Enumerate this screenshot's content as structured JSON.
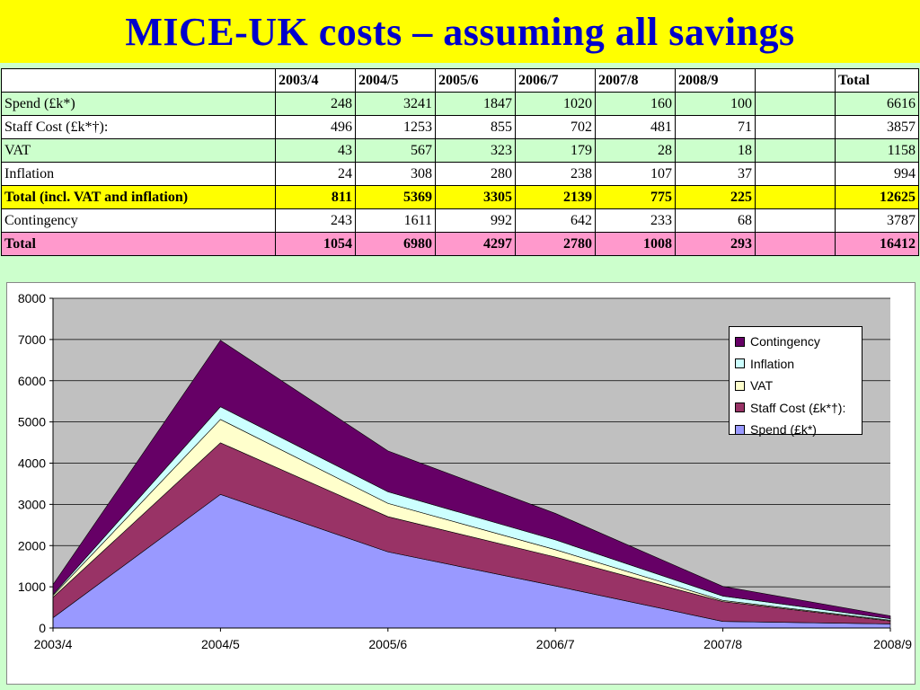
{
  "title": "MICE-UK costs – assuming all savings",
  "table": {
    "columns": [
      "",
      "2003/4",
      "2004/5",
      "2005/6",
      "2006/7",
      "2007/8",
      "2008/9",
      "",
      "Total"
    ],
    "rows": [
      {
        "label": "Spend (£k*)",
        "values": [
          "248",
          "3241",
          "1847",
          "1020",
          "160",
          "100",
          "",
          "6616"
        ],
        "style": "green"
      },
      {
        "label": "Staff Cost (£k*†):",
        "values": [
          "496",
          "1253",
          "855",
          "702",
          "481",
          "71",
          "",
          "3857"
        ],
        "style": "white"
      },
      {
        "label": "VAT",
        "values": [
          "43",
          "567",
          "323",
          "179",
          "28",
          "18",
          "",
          "1158"
        ],
        "style": "green"
      },
      {
        "label": "Inflation",
        "values": [
          "24",
          "308",
          "280",
          "238",
          "107",
          "37",
          "",
          "994"
        ],
        "style": "white"
      },
      {
        "label": "Total (incl. VAT and inflation)",
        "values": [
          "811",
          "5369",
          "3305",
          "2139",
          "775",
          "225",
          "",
          "12625"
        ],
        "style": "yellow"
      },
      {
        "label": "Contingency",
        "values": [
          "243",
          "1611",
          "992",
          "642",
          "233",
          "68",
          "",
          "3787"
        ],
        "style": "white"
      },
      {
        "label": "Total",
        "values": [
          "1054",
          "6980",
          "4297",
          "2780",
          "1008",
          "293",
          "",
          "16412"
        ],
        "style": "pink"
      }
    ]
  },
  "chart_data": {
    "type": "area",
    "stacked": true,
    "categories": [
      "2003/4",
      "2004/5",
      "2005/6",
      "2006/7",
      "2007/8",
      "2008/9"
    ],
    "series": [
      {
        "name": "Spend (£k*)",
        "values": [
          248,
          3241,
          1847,
          1020,
          160,
          100
        ],
        "color": "#9999ff"
      },
      {
        "name": "Staff Cost (£k*†):",
        "values": [
          496,
          1253,
          855,
          702,
          481,
          71
        ],
        "color": "#993366"
      },
      {
        "name": "VAT",
        "values": [
          43,
          567,
          323,
          179,
          28,
          18
        ],
        "color": "#ffffcc"
      },
      {
        "name": "Inflation",
        "values": [
          24,
          308,
          280,
          238,
          107,
          37
        ],
        "color": "#ccffff"
      },
      {
        "name": "Contingency",
        "values": [
          243,
          1611,
          992,
          642,
          233,
          68
        ],
        "color": "#660066"
      }
    ],
    "ylim": [
      0,
      8000
    ],
    "yticks": [
      "0",
      "1000",
      "2000",
      "3000",
      "4000",
      "5000",
      "6000",
      "7000",
      "8000"
    ],
    "grid": true,
    "plot_background": "#c0c0c0",
    "legend_position": "top-right",
    "title": "",
    "xlabel": "",
    "ylabel": ""
  }
}
